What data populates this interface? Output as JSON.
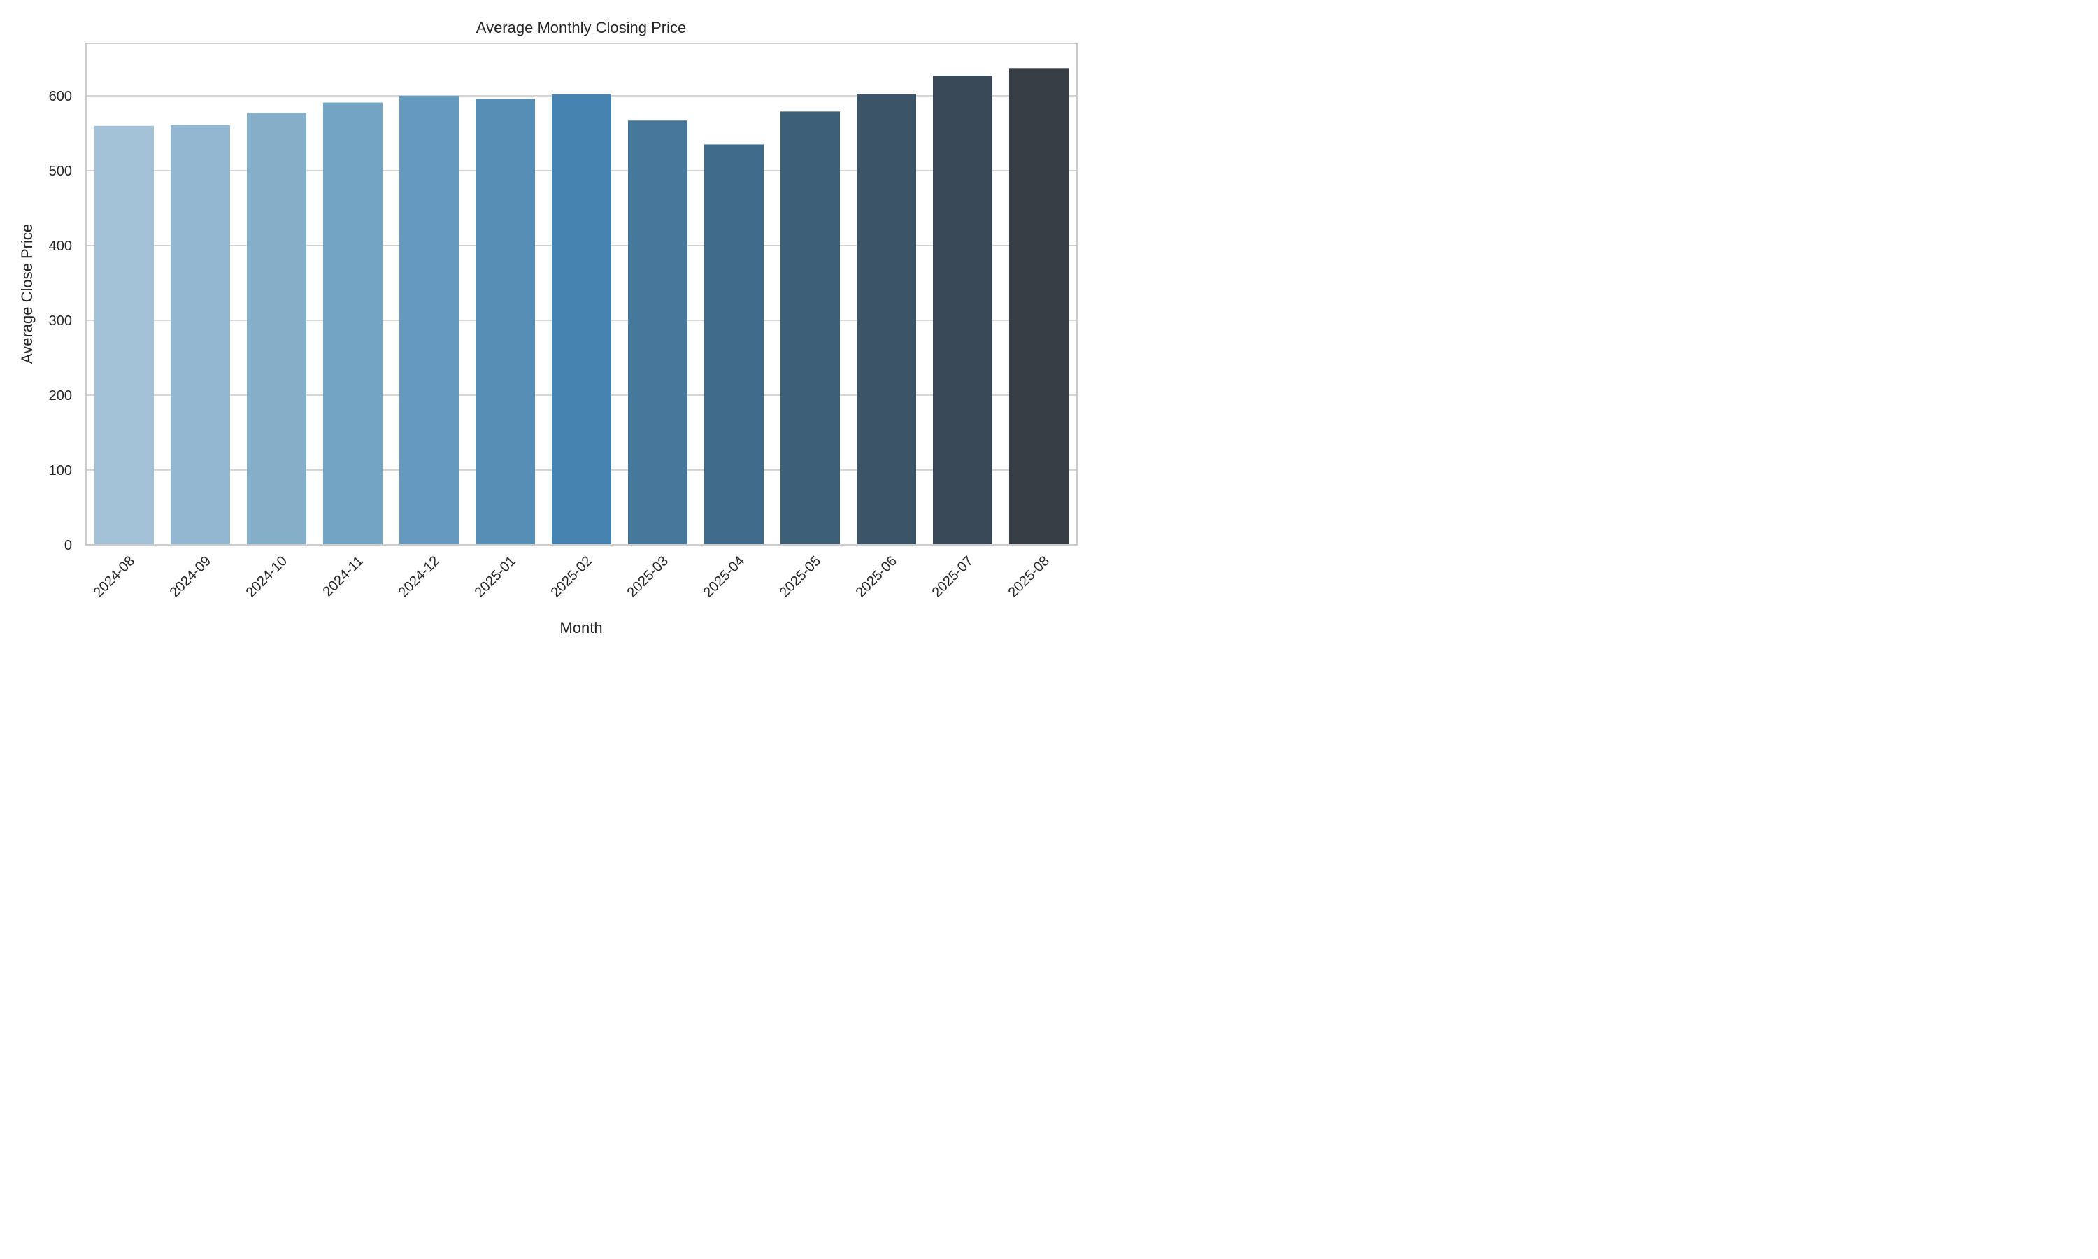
{
  "chart_data": {
    "type": "bar",
    "title": "Average Monthly Closing Price",
    "xlabel": "Month",
    "ylabel": "Average Close Price",
    "categories": [
      "2024-08",
      "2024-09",
      "2024-10",
      "2024-11",
      "2024-12",
      "2025-01",
      "2025-02",
      "2025-03",
      "2025-04",
      "2025-05",
      "2025-06",
      "2025-07",
      "2025-08"
    ],
    "values": [
      560,
      561,
      577,
      591,
      600,
      596,
      602,
      567,
      535,
      579,
      602,
      627,
      637
    ],
    "ylim": [
      0,
      670
    ],
    "yticks": [
      0,
      100,
      200,
      300,
      400,
      500,
      600
    ],
    "ytick_labels": [
      "0",
      "100",
      "200",
      "300",
      "400",
      "500",
      "600"
    ],
    "grid": "horizontal",
    "bar_colors": [
      "#a3c1d7",
      "#93b7d0",
      "#85aec8",
      "#74a4c3",
      "#6599bd",
      "#578eb6",
      "#4683b0",
      "#45789b",
      "#416b8a",
      "#3d5f77",
      "#3c5468",
      "#394958",
      "#363d45"
    ],
    "background_color": "#ffffff",
    "spine_color": "#cccccc",
    "grid_color": "#cccccc",
    "text_color": "#262626"
  }
}
